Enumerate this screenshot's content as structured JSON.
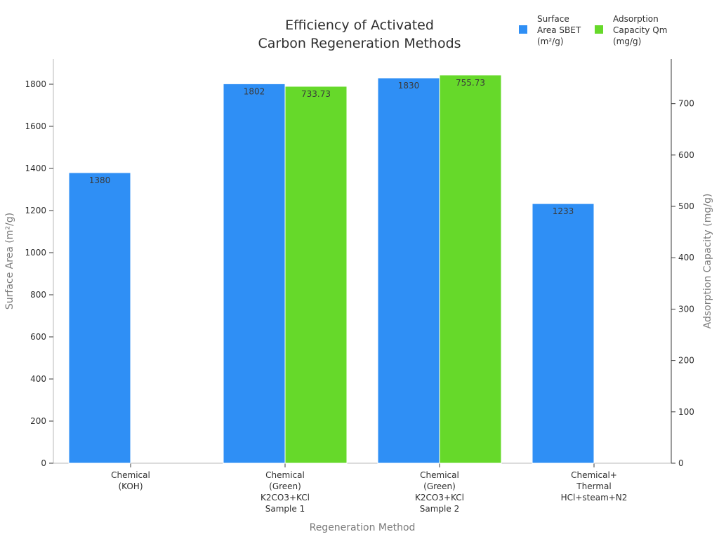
{
  "chart_data": {
    "type": "bar",
    "title": [
      "Efficiency of Activated",
      "Carbon Regeneration Methods"
    ],
    "xlabel": "Regeneration Method",
    "ylabel_left": "Surface Area (m²/g)",
    "ylabel_right": "Adsorption Capacity (mg/g)",
    "categories": [
      [
        "Chemical",
        "(KOH)"
      ],
      [
        "Chemical",
        "(Green)",
        "K2CO3+KCl",
        "Sample 1"
      ],
      [
        "Chemical",
        "(Green)",
        "K2CO3+KCl",
        "Sample 2"
      ],
      [
        "Chemical+",
        "Thermal",
        "HCl+steam+N2"
      ]
    ],
    "ylim_left": [
      0,
      1920
    ],
    "ylim_right": [
      0,
      787
    ],
    "yticks_left": [
      0,
      200,
      400,
      600,
      800,
      1000,
      1200,
      1400,
      1600,
      1800
    ],
    "yticks_right": [
      0,
      100,
      200,
      300,
      400,
      500,
      600,
      700
    ],
    "series": [
      {
        "name": [
          "Surface",
          "Area SBET",
          "(m²/g)"
        ],
        "axis": "left",
        "color": "#2f8ff5",
        "values": [
          1380,
          1802,
          1830,
          1233
        ],
        "labels": [
          "1380",
          "1802",
          "1830",
          "1233"
        ]
      },
      {
        "name": [
          "Adsorption",
          "Capacity Qm",
          "(mg/g)"
        ],
        "axis": "right",
        "color": "#66d92a",
        "values": [
          null,
          733.73,
          755.73,
          null
        ],
        "labels": [
          "",
          "733.73",
          "755.73",
          ""
        ]
      }
    ],
    "legend_position": "top-right",
    "grid": false
  }
}
